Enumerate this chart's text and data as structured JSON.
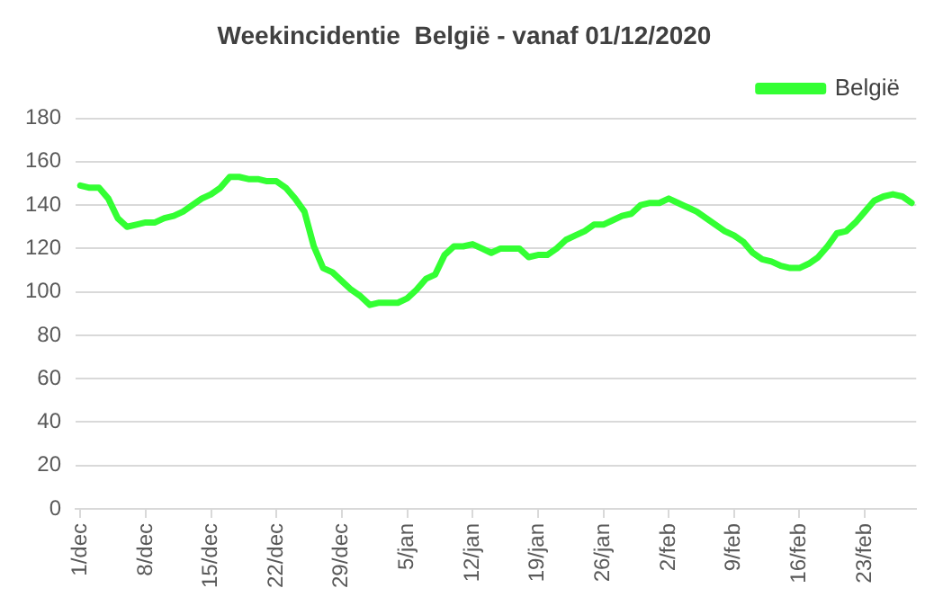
{
  "chart_data": {
    "type": "line",
    "title": "Weekincidentie  België - vanaf 01/12/2020",
    "categories": [
      "1/dec",
      null,
      null,
      null,
      null,
      null,
      null,
      "8/dec",
      null,
      null,
      null,
      null,
      null,
      null,
      "15/dec",
      null,
      null,
      null,
      null,
      null,
      null,
      "22/dec",
      null,
      null,
      null,
      null,
      null,
      null,
      "29/dec",
      null,
      null,
      null,
      null,
      null,
      null,
      "5/jan",
      null,
      null,
      null,
      null,
      null,
      null,
      "12/jan",
      null,
      null,
      null,
      null,
      null,
      null,
      "19/jan",
      null,
      null,
      null,
      null,
      null,
      null,
      "26/jan",
      null,
      null,
      null,
      null,
      null,
      null,
      "2/feb",
      null,
      null,
      null,
      null,
      null,
      null,
      "9/feb",
      null,
      null,
      null,
      null,
      null,
      null,
      "16/feb",
      null,
      null,
      null,
      null,
      null,
      null,
      "23/feb",
      null,
      null,
      null,
      null,
      null
    ],
    "series": [
      {
        "name": "België",
        "color": "#33ff33",
        "values": [
          149,
          148,
          148,
          143,
          134,
          130,
          131,
          132,
          132,
          134,
          135,
          137,
          140,
          143,
          145,
          148,
          153,
          153,
          152,
          152,
          151,
          151,
          148,
          143,
          137,
          121,
          111,
          109,
          105,
          101,
          98,
          94,
          95,
          95,
          95,
          97,
          101,
          106,
          108,
          117,
          121,
          121,
          122,
          120,
          118,
          120,
          120,
          120,
          116,
          117,
          117,
          120,
          124,
          126,
          128,
          131,
          131,
          133,
          135,
          136,
          140,
          141,
          141,
          143,
          141,
          139,
          137,
          134,
          131,
          128,
          126,
          123,
          118,
          115,
          114,
          112,
          111,
          111,
          113,
          116,
          121,
          127,
          128,
          132,
          137,
          142,
          144,
          145,
          144,
          141
        ]
      }
    ],
    "ylim": [
      0,
      180
    ],
    "yticks": [
      0,
      20,
      40,
      60,
      80,
      100,
      120,
      140,
      160,
      180
    ],
    "grid": "y",
    "legend": "top right",
    "marker": "none",
    "line_style": "solid"
  }
}
